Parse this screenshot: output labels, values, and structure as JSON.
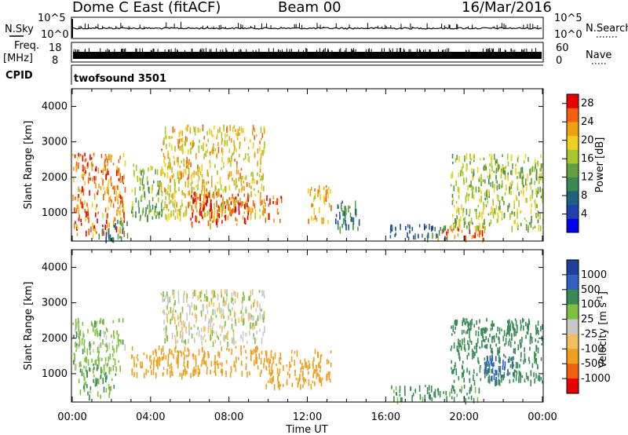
{
  "header": {
    "station": "Dome C East (fitACF)",
    "beam": "Beam 00",
    "date": "16/Mar/2016"
  },
  "panels": {
    "nsky_label": "N.Sky",
    "nsky_ticks": [
      "10^5",
      "10^0"
    ],
    "nsearch_label": "N.Search",
    "freq_label": "Freq.",
    "freq_unit": "[MHz]",
    "freq_ticks": [
      "18",
      "8"
    ],
    "nave_label": "Nave",
    "nave_ticks": [
      "60",
      "0"
    ],
    "cpid_label": "CPID",
    "cpid_value": "twofsound 3501"
  },
  "chart_data": [
    {
      "type": "heatmap",
      "title": "",
      "ylabel": "Slant Range [km]",
      "xlabel": "Time UT",
      "x_ticks": [
        "00:00",
        "04:00",
        "08:00",
        "12:00",
        "16:00",
        "20:00",
        "00:00"
      ],
      "xlim_hours": [
        0,
        24
      ],
      "y_ticks": [
        1000,
        2000,
        3000,
        4000
      ],
      "ylim": [
        200,
        4500
      ],
      "colorbar": {
        "label": "Power [dB]",
        "ticks": [
          "4",
          "8",
          "12",
          "16",
          "20",
          "24",
          "28"
        ],
        "range": [
          0,
          30
        ],
        "colors": [
          "#0000ee",
          "#2040b0",
          "#206080",
          "#3a8a55",
          "#60a040",
          "#a8c830",
          "#f0d020",
          "#f0a010",
          "#f06010",
          "#e80000"
        ]
      },
      "echo_regions": [
        {
          "t": [
            0.0,
            2.7
          ],
          "r": [
            400,
            2700
          ],
          "value": 24
        },
        {
          "t": [
            1.2,
            2.8
          ],
          "r": [
            300,
            800
          ],
          "value": 10
        },
        {
          "t": [
            3.0,
            4.6
          ],
          "r": [
            900,
            2400
          ],
          "value": 14
        },
        {
          "t": [
            4.5,
            9.8
          ],
          "r": [
            900,
            3500
          ],
          "value": 20
        },
        {
          "t": [
            6.0,
            9.0
          ],
          "r": [
            700,
            1600
          ],
          "value": 27
        },
        {
          "t": [
            9.8,
            10.7
          ],
          "r": [
            800,
            1500
          ],
          "value": 26
        },
        {
          "t": [
            12.0,
            13.2
          ],
          "r": [
            800,
            1800
          ],
          "value": 22
        },
        {
          "t": [
            13.4,
            14.8
          ],
          "r": [
            600,
            1400
          ],
          "value": 10
        },
        {
          "t": [
            16.2,
            19.2
          ],
          "r": [
            300,
            700
          ],
          "value": 8
        },
        {
          "t": [
            18.4,
            21.0
          ],
          "r": [
            300,
            650
          ],
          "value": 26
        },
        {
          "t": [
            19.3,
            24.0
          ],
          "r": [
            600,
            2700
          ],
          "value": 16
        }
      ]
    },
    {
      "type": "heatmap",
      "title": "",
      "ylabel": "Slant Range [km]",
      "xlabel": "Time UT",
      "x_ticks": [
        "00:00",
        "04:00",
        "08:00",
        "12:00",
        "16:00",
        "20:00",
        "00:00"
      ],
      "xlim_hours": [
        0,
        24
      ],
      "y_ticks": [
        1000,
        2000,
        3000,
        4000
      ],
      "ylim": [
        200,
        4500
      ],
      "colorbar": {
        "label": "Velocity [m s^-1]",
        "ticks": [
          "1000",
          "500",
          "100",
          "25",
          "-25",
          "-100",
          "-500",
          "-1000"
        ],
        "colors": [
          "#2040a0",
          "#3060c0",
          "#3a8a55",
          "#80c040",
          "#c8c8c8",
          "#f0c060",
          "#f0a020",
          "#f06010",
          "#e80000"
        ]
      },
      "echo_regions": [
        {
          "t": [
            0.0,
            2.7
          ],
          "r": [
            1200,
            2600
          ],
          "value": 50
        },
        {
          "t": [
            0.3,
            2.2
          ],
          "r": [
            400,
            1300
          ],
          "value": 100
        },
        {
          "t": [
            3.0,
            9.8
          ],
          "r": [
            1000,
            1800
          ],
          "value": -300
        },
        {
          "t": [
            4.5,
            9.8
          ],
          "r": [
            1900,
            3400
          ],
          "value": 0
        },
        {
          "t": [
            9.8,
            13.2
          ],
          "r": [
            700,
            1700
          ],
          "value": -300
        },
        {
          "t": [
            16.2,
            20.8
          ],
          "r": [
            300,
            700
          ],
          "value": 150
        },
        {
          "t": [
            19.3,
            24.0
          ],
          "r": [
            800,
            2600
          ],
          "value": 300
        },
        {
          "t": [
            21.0,
            22.5
          ],
          "r": [
            900,
            1600
          ],
          "value": 800
        }
      ]
    }
  ]
}
